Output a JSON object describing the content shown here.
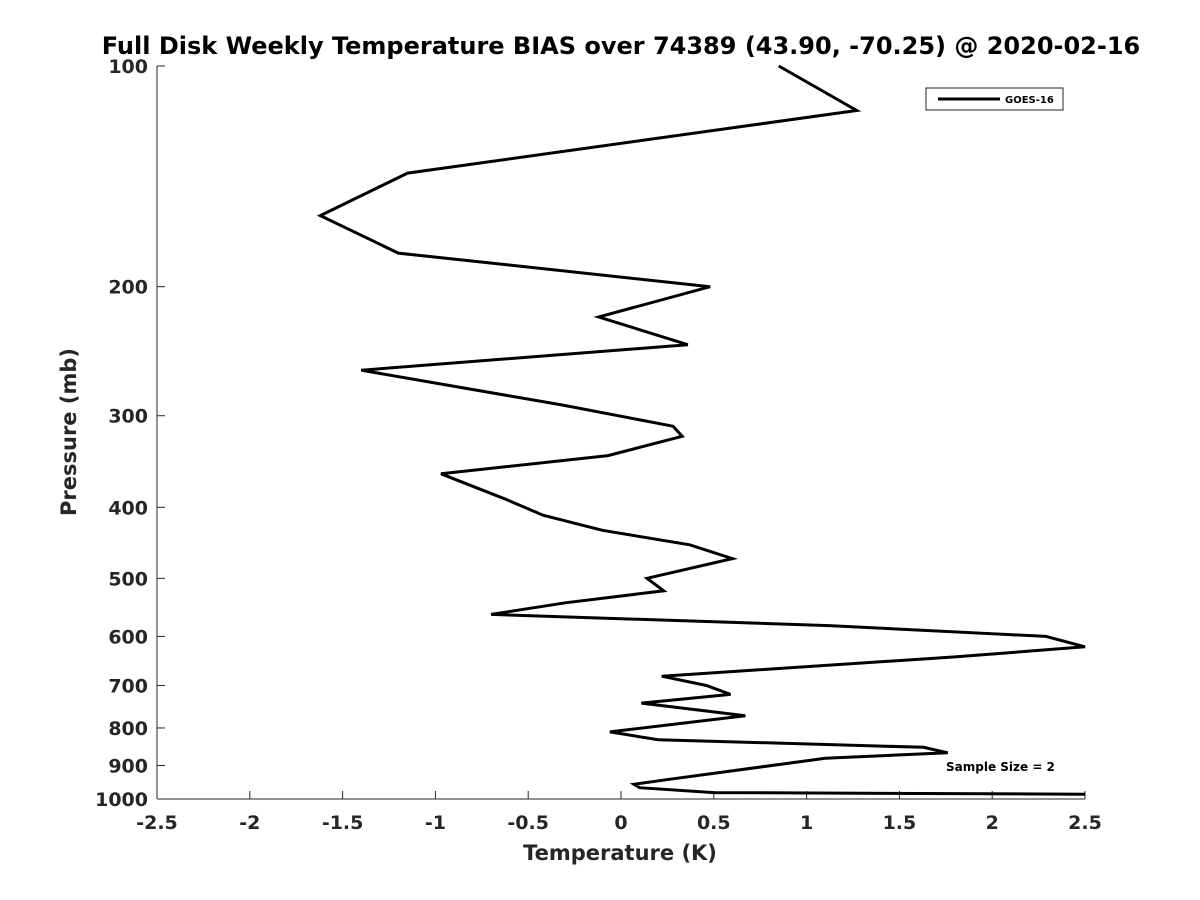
{
  "chart_data": {
    "type": "line",
    "title": "Full Disk Weekly Temperature BIAS over 74389 (43.90, -70.25) @ 2020-02-16",
    "xlabel": "Temperature (K)",
    "ylabel": "Pressure (mb)",
    "xlim": [
      -2.5,
      2.5
    ],
    "ylim": [
      100,
      1000
    ],
    "y_scale": "log",
    "y_reversed": true,
    "x_ticks": [
      "-2.5",
      "-2",
      "-1.5",
      "-1",
      "-0.5",
      "0",
      "0.5",
      "1",
      "1.5",
      "2",
      "2.5"
    ],
    "x_tick_values": [
      -2.5,
      -2,
      -1.5,
      -1,
      -0.5,
      0,
      0.5,
      1,
      1.5,
      2,
      2.5
    ],
    "y_ticks": [
      "100",
      "200",
      "300",
      "400",
      "500",
      "600",
      "700",
      "800",
      "900",
      "1000"
    ],
    "y_tick_values": [
      100,
      200,
      300,
      400,
      500,
      600,
      700,
      800,
      900,
      1000
    ],
    "grid": false,
    "legend_position": "top-right",
    "series": [
      {
        "name": "GOES-16",
        "color": "#000000",
        "points": [
          {
            "x": 0.85,
            "y": 100
          },
          {
            "x": 1.27,
            "y": 115
          },
          {
            "x": -1.15,
            "y": 140
          },
          {
            "x": -1.62,
            "y": 160
          },
          {
            "x": -1.2,
            "y": 180
          },
          {
            "x": 0.48,
            "y": 200
          },
          {
            "x": -0.12,
            "y": 220
          },
          {
            "x": 0.36,
            "y": 240
          },
          {
            "x": -1.4,
            "y": 260
          },
          {
            "x": -0.32,
            "y": 290
          },
          {
            "x": 0.28,
            "y": 310
          },
          {
            "x": 0.33,
            "y": 320
          },
          {
            "x": -0.07,
            "y": 340
          },
          {
            "x": -0.97,
            "y": 360
          },
          {
            "x": -0.62,
            "y": 390
          },
          {
            "x": -0.42,
            "y": 410
          },
          {
            "x": -0.1,
            "y": 430
          },
          {
            "x": 0.37,
            "y": 450
          },
          {
            "x": 0.6,
            "y": 470
          },
          {
            "x": 0.14,
            "y": 500
          },
          {
            "x": 0.23,
            "y": 520
          },
          {
            "x": -0.3,
            "y": 540
          },
          {
            "x": -0.7,
            "y": 560
          },
          {
            "x": 1.12,
            "y": 580
          },
          {
            "x": 2.29,
            "y": 600
          },
          {
            "x": 2.5,
            "y": 620
          },
          {
            "x": 1.8,
            "y": 640
          },
          {
            "x": 0.22,
            "y": 680
          },
          {
            "x": 0.46,
            "y": 700
          },
          {
            "x": 0.59,
            "y": 720
          },
          {
            "x": 0.11,
            "y": 740
          },
          {
            "x": 0.67,
            "y": 770
          },
          {
            "x": -0.06,
            "y": 810
          },
          {
            "x": 0.2,
            "y": 830
          },
          {
            "x": 1.63,
            "y": 850
          },
          {
            "x": 1.76,
            "y": 865
          },
          {
            "x": 1.1,
            "y": 880
          },
          {
            "x": 0.26,
            "y": 940
          },
          {
            "x": 0.07,
            "y": 955
          },
          {
            "x": 0.1,
            "y": 965
          },
          {
            "x": 0.5,
            "y": 980
          },
          {
            "x": 2.5,
            "y": 985
          }
        ]
      }
    ],
    "annotations": [
      "Sample Size = 2"
    ]
  }
}
